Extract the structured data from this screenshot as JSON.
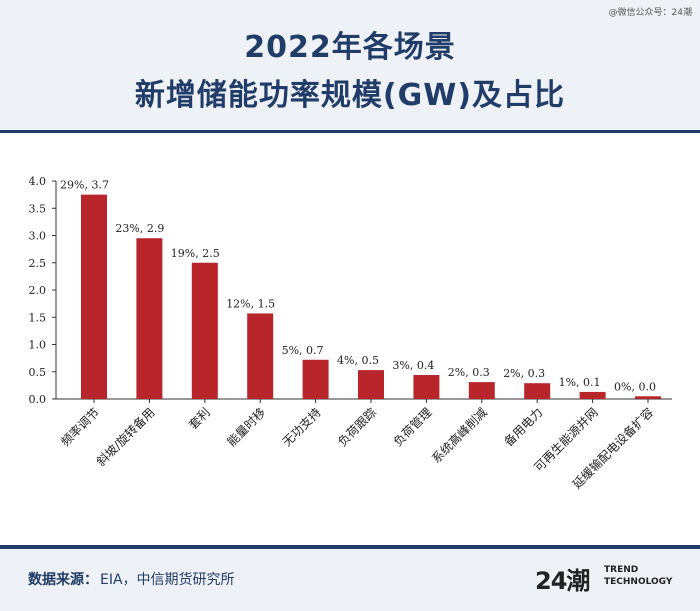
{
  "watermark": "@微信公众号：24潮",
  "header": {
    "title_line1": "2022年各场景",
    "title_line2": "新增储能功率规模(GW)及占比"
  },
  "footer": {
    "source_label": "数据来源：",
    "source_value": "EIA，中信期货研究所",
    "logo_mark": "24潮",
    "logo_line1": "TREND",
    "logo_line2": "TECHNOLOGY"
  },
  "colors": {
    "bar": "#b8262b",
    "title": "#1f3d68"
  },
  "chart_data": {
    "type": "bar",
    "title": "2022年各场景新增储能功率规模(GW)及占比",
    "categories": [
      "频率调节",
      "斜坡/旋转备用",
      "套利",
      "能量时移",
      "无功支持",
      "负荷跟踪",
      "负荷管理",
      "系统高峰削减",
      "备用电力",
      "可再生能源并网",
      "延缓输配电设备扩容"
    ],
    "values": [
      3.7,
      2.9,
      2.5,
      1.5,
      0.7,
      0.5,
      0.4,
      0.3,
      0.3,
      0.1,
      0.0
    ],
    "bar_heights_approx": [
      3.75,
      2.95,
      2.5,
      1.57,
      0.72,
      0.53,
      0.44,
      0.31,
      0.29,
      0.13,
      0.05
    ],
    "data_labels": [
      "29%, 3.7",
      "23%, 2.9",
      "19%, 2.5",
      "12%, 1.5",
      "5%, 0.7",
      "4%, 0.5",
      "3%, 0.4",
      "2%, 0.3",
      "2%, 0.3",
      "1%, 0.1",
      "0%, 0.0"
    ],
    "yticks": [
      "0.0",
      "0.5",
      "1.0",
      "1.5",
      "2.0",
      "2.5",
      "3.0",
      "3.5",
      "4.0"
    ],
    "ylim": [
      0,
      4.0
    ],
    "grid": false,
    "legend": "none"
  }
}
